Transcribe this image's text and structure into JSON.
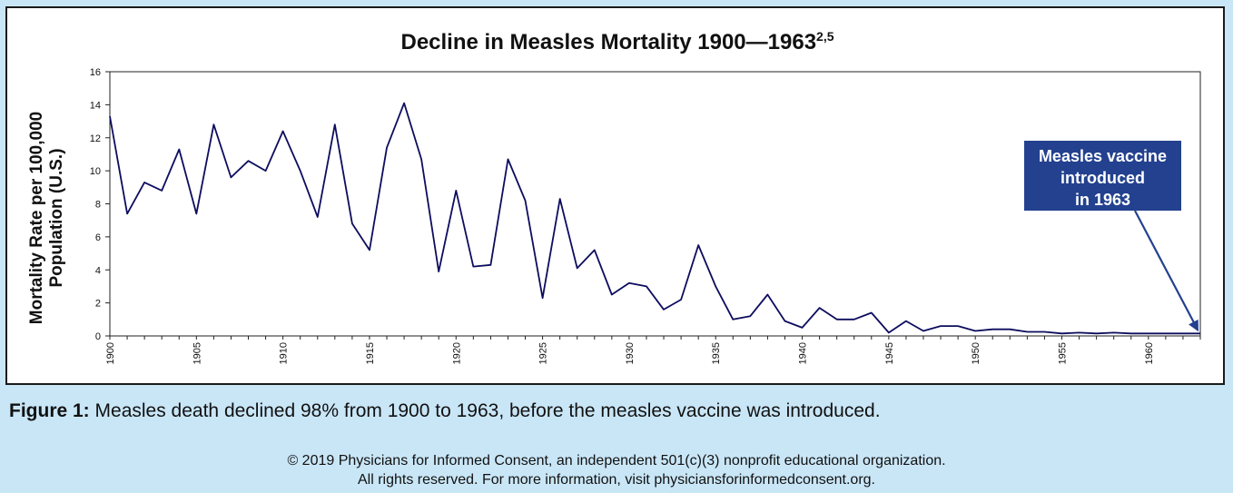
{
  "chart_data": {
    "type": "line",
    "title": "Decline in Measles Mortality 1900—1963",
    "title_superscript": "2,5",
    "ylabel_line1": "Mortality Rate per 100,000",
    "ylabel_line2": "Population (U.S.)",
    "xlabel": "",
    "xlim": [
      1900,
      1963
    ],
    "ylim": [
      0,
      16
    ],
    "yticks": [
      0,
      2,
      4,
      6,
      8,
      10,
      12,
      14,
      16
    ],
    "xticks": [
      1900,
      1905,
      1910,
      1915,
      1920,
      1925,
      1930,
      1935,
      1940,
      1945,
      1950,
      1955,
      1960
    ],
    "grid": false,
    "legend": "none",
    "x": [
      1900,
      1901,
      1902,
      1903,
      1904,
      1905,
      1906,
      1907,
      1908,
      1909,
      1910,
      1911,
      1912,
      1913,
      1914,
      1915,
      1916,
      1917,
      1918,
      1919,
      1920,
      1921,
      1922,
      1923,
      1924,
      1925,
      1926,
      1927,
      1928,
      1929,
      1930,
      1931,
      1932,
      1933,
      1934,
      1935,
      1936,
      1937,
      1938,
      1939,
      1940,
      1941,
      1942,
      1943,
      1944,
      1945,
      1946,
      1947,
      1948,
      1949,
      1950,
      1951,
      1952,
      1953,
      1954,
      1955,
      1956,
      1957,
      1958,
      1959,
      1960,
      1961,
      1962,
      1963
    ],
    "series": [
      {
        "values": [
          13.3,
          7.4,
          9.3,
          8.8,
          11.3,
          7.4,
          12.8,
          9.6,
          10.6,
          10.0,
          12.4,
          10.0,
          7.2,
          12.8,
          6.8,
          5.2,
          11.4,
          14.1,
          10.7,
          3.9,
          8.8,
          4.2,
          4.3,
          10.7,
          8.2,
          2.3,
          8.3,
          4.1,
          5.2,
          2.5,
          3.2,
          3.0,
          1.6,
          2.2,
          5.5,
          3.0,
          1.0,
          1.2,
          2.5,
          0.9,
          0.5,
          1.7,
          1.0,
          1.0,
          1.4,
          0.2,
          0.9,
          0.3,
          0.6,
          0.6,
          0.3,
          0.4,
          0.4,
          0.25,
          0.25,
          0.15,
          0.2,
          0.15,
          0.2,
          0.15,
          0.15,
          0.15,
          0.15,
          0.15
        ],
        "color": "#0d0d5e"
      }
    ],
    "annotation": {
      "line1": "Measles vaccine",
      "line2": "introduced",
      "line3": "in 1963",
      "target_year": 1963,
      "box_color": "#23418f",
      "text_color": "#ffffff"
    }
  },
  "caption": {
    "label": "Figure 1:",
    "text": " Measles death declined 98% from 1900 to 1963, before the measles vaccine was introduced."
  },
  "copyright": {
    "line1": "© 2019 Physicians for Informed Consent, an independent 501(c)(3) nonprofit educational organization.",
    "line2": "All rights reserved. For more information, visit physiciansforinformedconsent.org."
  }
}
